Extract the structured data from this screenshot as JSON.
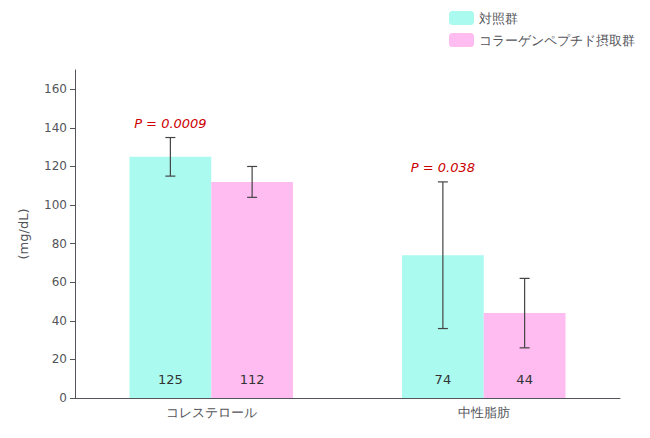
{
  "chart_data": {
    "type": "bar",
    "categories": [
      "コレステロール",
      "中性脂肪"
    ],
    "series": [
      {
        "name": "対照群",
        "color": "#AAFAF0",
        "values": [
          125,
          74
        ],
        "errors": [
          10,
          38
        ]
      },
      {
        "name": "コラーゲンペプチド摂取群",
        "color": "#FFBCF0",
        "values": [
          112,
          44
        ],
        "errors": [
          8,
          18
        ]
      }
    ],
    "ylabel": "(mg/dL)",
    "ylim": [
      0,
      170
    ],
    "yticks": [
      0,
      20,
      40,
      60,
      80,
      100,
      120,
      140,
      160
    ],
    "annotations": [
      {
        "text": "P = 0.0009",
        "category": "コレステロール",
        "color": "#CC0000"
      },
      {
        "text": "P = 0.038",
        "category": "中性脂肪",
        "color": "#CC0000"
      }
    ],
    "data_labels": true,
    "grid": false,
    "legend": "upper right"
  }
}
